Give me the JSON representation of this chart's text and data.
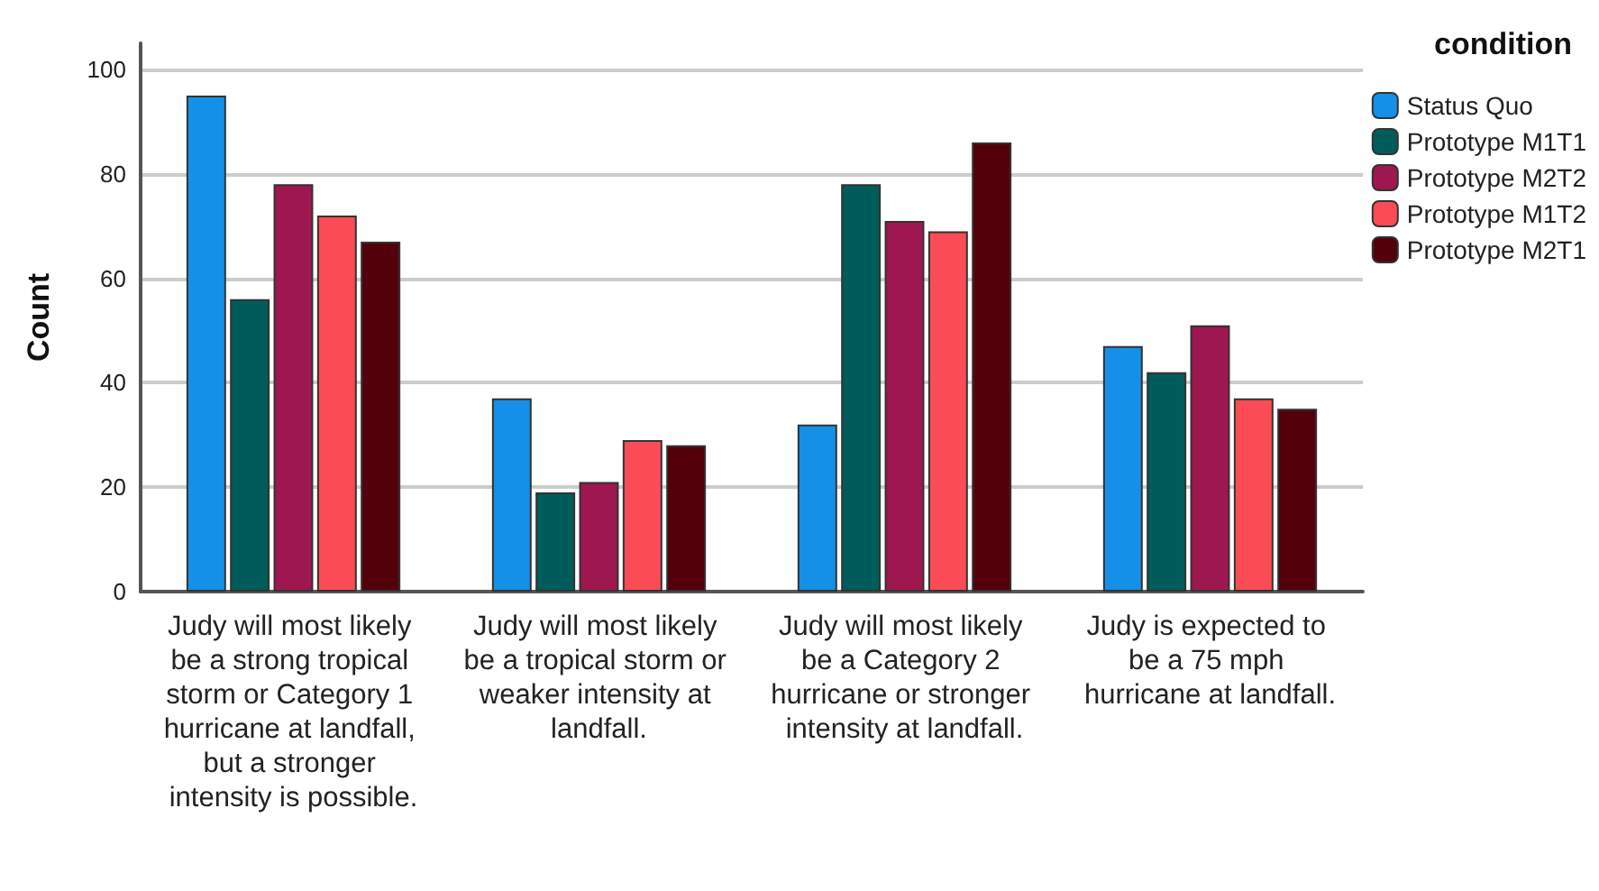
{
  "chart_data": {
    "type": "bar",
    "ylabel": "Count",
    "legend_title": "condition",
    "categories": [
      "Judy will most likely be a strong tropical storm or Category 1 hurricane at landfall, but a stronger intensity is possible.",
      "Judy will most likely be a tropical storm or weaker intensity at landfall.",
      "Judy will most likely be a Category 2 hurricane or stronger intensity at landfall.",
      "Judy is expected to be a 75 mph hurricane at landfall."
    ],
    "series": [
      {
        "name": "Status Quo",
        "color": "#1490e8",
        "values": [
          95,
          37,
          32,
          47
        ]
      },
      {
        "name": "Prototype M1T1",
        "color": "#005c5a",
        "values": [
          56,
          19,
          78,
          42
        ]
      },
      {
        "name": "Prototype M2T2",
        "color": "#9e1750",
        "values": [
          78,
          21,
          71,
          51
        ]
      },
      {
        "name": "Prototype M1T2",
        "color": "#fb4c56",
        "values": [
          72,
          29,
          69,
          37
        ]
      },
      {
        "name": "Prototype M2T1",
        "color": "#54000a",
        "values": [
          67,
          28,
          86,
          35
        ]
      }
    ],
    "ylim": [
      0,
      105
    ],
    "yticks": [
      0,
      20,
      40,
      60,
      80,
      100
    ],
    "grid": "y",
    "legend": "top right"
  }
}
